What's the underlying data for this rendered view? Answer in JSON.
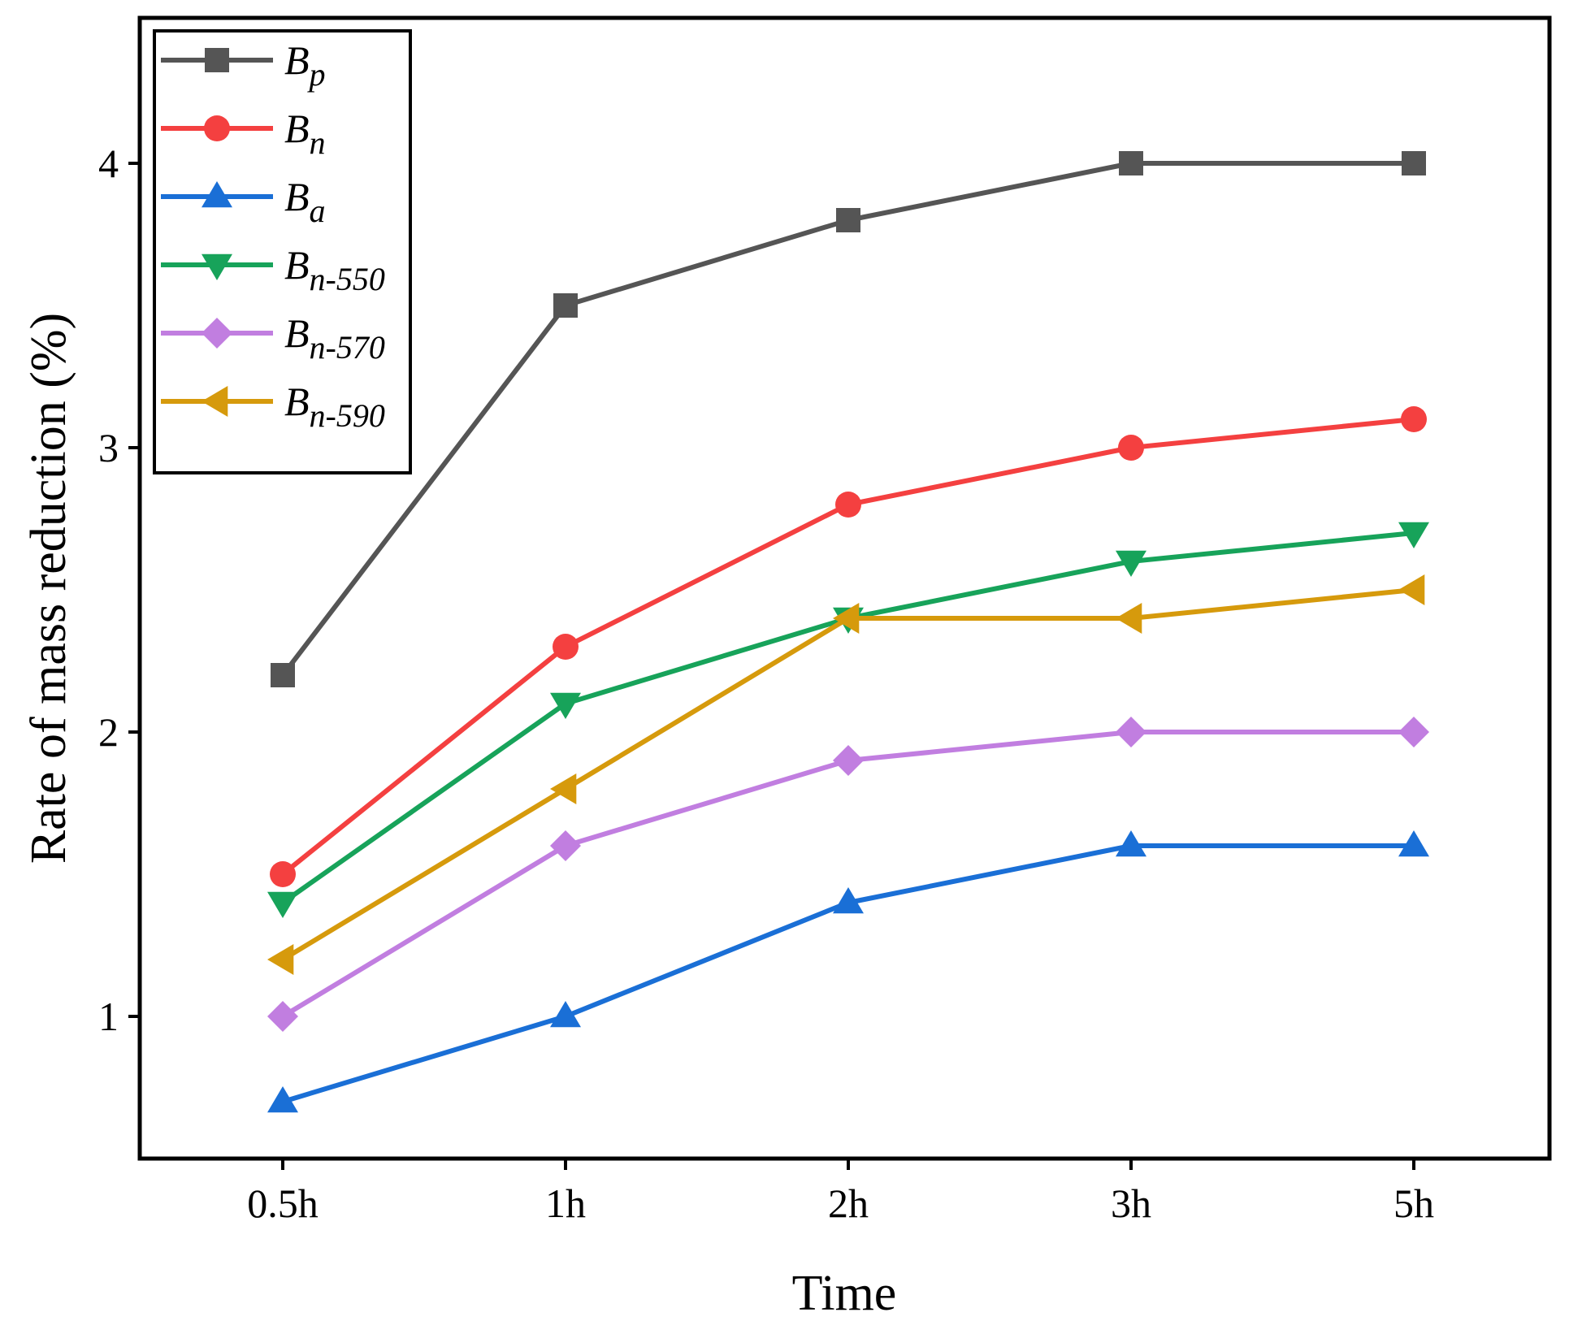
{
  "chart_data": {
    "type": "line",
    "title": "",
    "xlabel": "Time",
    "ylabel": "Rate of mass reduction (%)",
    "categories": [
      "0.5h",
      "1h",
      "2h",
      "3h",
      "5h"
    ],
    "ylim": [
      0.5,
      4.5
    ],
    "yticks": [
      1,
      2,
      3,
      4
    ],
    "grid": false,
    "legend_position": "top-left",
    "series": [
      {
        "name": "Bp",
        "base": "B",
        "sub": "p",
        "color": "#555555",
        "marker": "square",
        "values": [
          2.2,
          3.5,
          3.8,
          4.0,
          4.0
        ]
      },
      {
        "name": "Bn",
        "base": "B",
        "sub": "n",
        "color": "#f44040",
        "marker": "circle",
        "values": [
          1.5,
          2.3,
          2.8,
          3.0,
          3.1
        ]
      },
      {
        "name": "Ba",
        "base": "B",
        "sub": "a",
        "color": "#1a6fd6",
        "marker": "triangle-up",
        "values": [
          0.7,
          1.0,
          1.4,
          1.6,
          1.6
        ]
      },
      {
        "name": "Bn-550",
        "base": "B",
        "sub": "n-550",
        "color": "#17a35a",
        "marker": "triangle-down",
        "values": [
          1.4,
          2.1,
          2.4,
          2.6,
          2.7
        ]
      },
      {
        "name": "Bn-570",
        "base": "B",
        "sub": "n-570",
        "color": "#c17ee0",
        "marker": "diamond",
        "values": [
          1.0,
          1.6,
          1.9,
          2.0,
          2.0
        ]
      },
      {
        "name": "Bn-590",
        "base": "B",
        "sub": "n-590",
        "color": "#d69a0c",
        "marker": "triangle-left",
        "values": [
          1.2,
          1.8,
          2.4,
          2.4,
          2.5
        ]
      }
    ]
  }
}
